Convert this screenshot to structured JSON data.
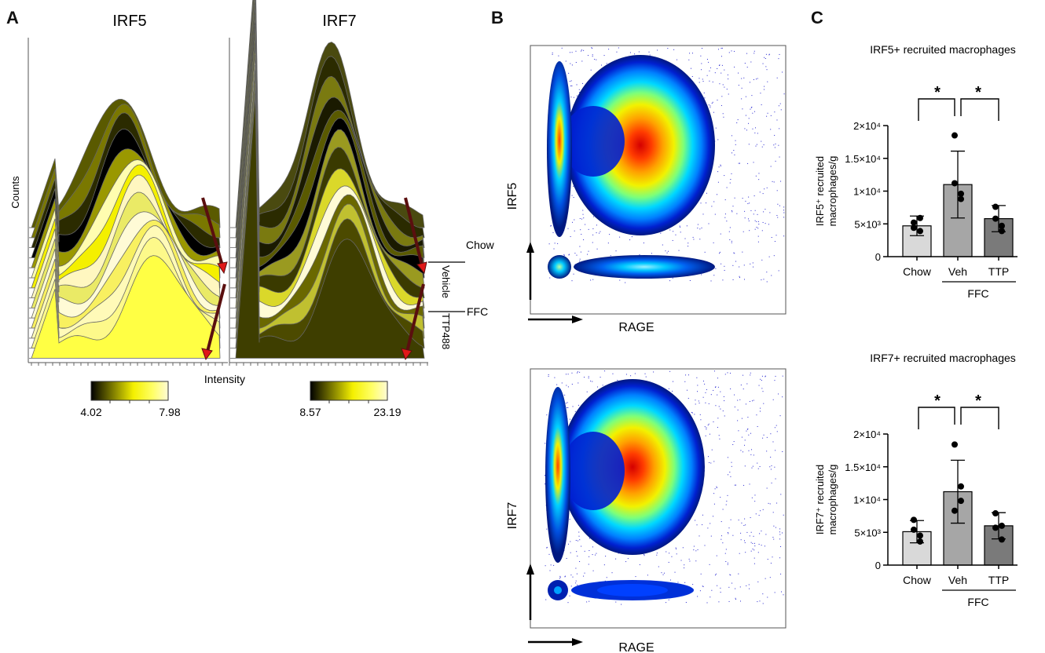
{
  "panels": {
    "a": "A",
    "b": "B",
    "c": "C"
  },
  "panel_a": {
    "irf5_title": "IRF5",
    "irf7_title": "IRF7",
    "y_label": "Counts",
    "x_label": "Intensity",
    "colorbar_irf5": {
      "min": "4.02",
      "max": "7.98"
    },
    "colorbar_irf7": {
      "min": "8.57",
      "max": "23.19"
    },
    "group_labels": {
      "chow": "Chow",
      "vehicle": "Vehicle",
      "ttp488": "TTP488",
      "ffc": "FFC"
    }
  },
  "panel_b": {
    "top": {
      "y_label": "IRF5",
      "x_label": "RAGE"
    },
    "bottom": {
      "y_label": "IRF7",
      "x_label": "RAGE"
    }
  },
  "chart_data": [
    {
      "type": "bar",
      "title": "IRF5+ recruited macrophages",
      "ylabel": "IRF5⁺ recruited macrophages/g",
      "ylabel_lines": [
        "IRF5⁺ recruited",
        "macrophages/g"
      ],
      "categories": [
        "Chow",
        "Veh",
        "TTP"
      ],
      "group_label": "FFC",
      "values": [
        4700,
        11000,
        5800
      ],
      "error": [
        1500,
        5100,
        2000
      ],
      "points": [
        [
          4400,
          5900,
          5200,
          3900
        ],
        [
          18500,
          9600,
          11200,
          8800
        ],
        [
          7600,
          4700,
          5800,
          3900
        ]
      ],
      "ylim": [
        0,
        20000
      ],
      "yticks": [
        "0",
        "5×10³",
        "1×10⁴",
        "1.5×10⁴",
        "2×10⁴"
      ],
      "significance": [
        "*",
        "*"
      ],
      "colors": [
        "#d9d9d9",
        "#a6a6a6",
        "#7a7a7a"
      ]
    },
    {
      "type": "bar",
      "title": "IRF7+ recruited macrophages",
      "ylabel": "IRF7⁺ recruited macrophages/g",
      "ylabel_lines": [
        "IRF7⁺ recruited",
        "macrophages/g"
      ],
      "categories": [
        "Chow",
        "Veh",
        "TTP"
      ],
      "group_label": "FFC",
      "values": [
        5100,
        11200,
        6000
      ],
      "error": [
        1700,
        4800,
        2000
      ],
      "points": [
        [
          6900,
          3600,
          5400,
          4500
        ],
        [
          18400,
          12000,
          8300,
          9800
        ],
        [
          7900,
          3900,
          5700,
          6000
        ]
      ],
      "ylim": [
        0,
        20000
      ],
      "yticks": [
        "0",
        "5×10³",
        "1×10⁴",
        "1.5×10⁴",
        "2×10⁴"
      ],
      "significance": [
        "*",
        "*"
      ],
      "colors": [
        "#d9d9d9",
        "#a6a6a6",
        "#7a7a7a"
      ]
    }
  ]
}
